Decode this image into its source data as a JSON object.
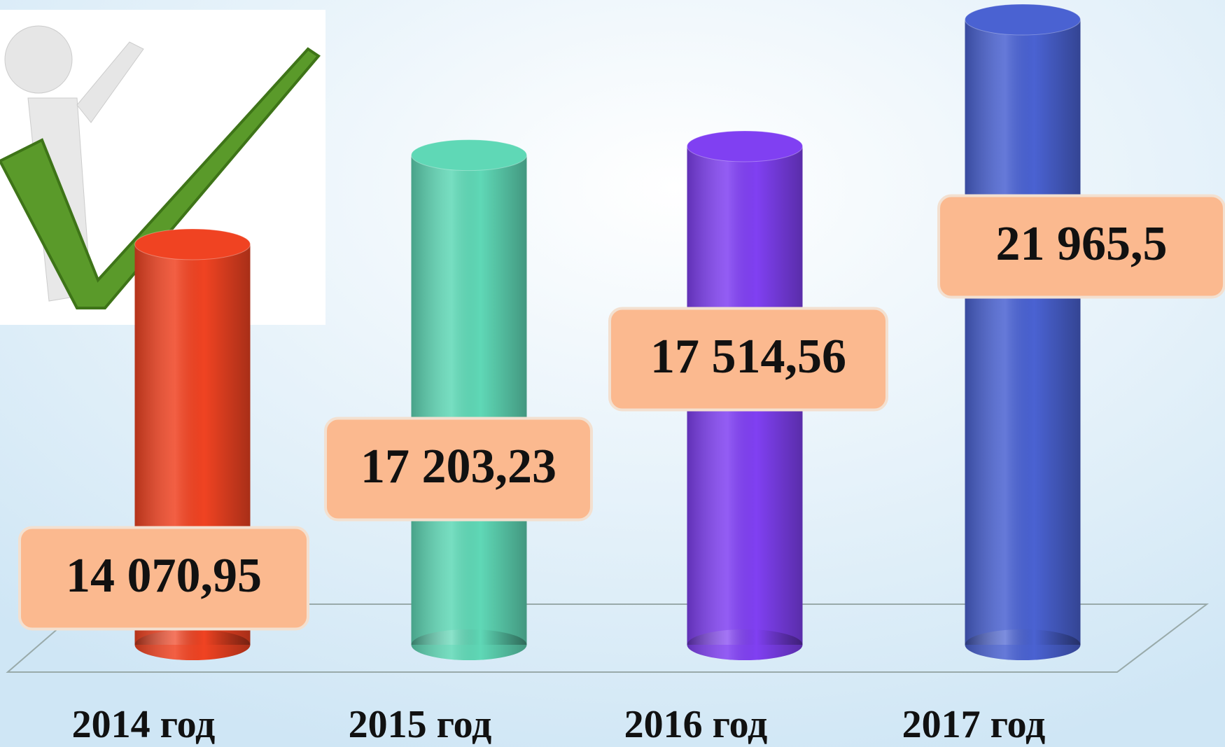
{
  "chart_data": {
    "type": "cylinder",
    "categories": [
      "2014 год",
      "2015 год",
      "2016 год",
      "2017 год"
    ],
    "values": [
      14070.95,
      17203.23,
      17514.56,
      21965.5
    ],
    "value_labels": [
      "14 070,95",
      "17 203,23",
      "17 514,56",
      "21 965,5"
    ],
    "colors": [
      "#f04322",
      "#5fd8b6",
      "#8040f2",
      "#4a62d2"
    ]
  }
}
